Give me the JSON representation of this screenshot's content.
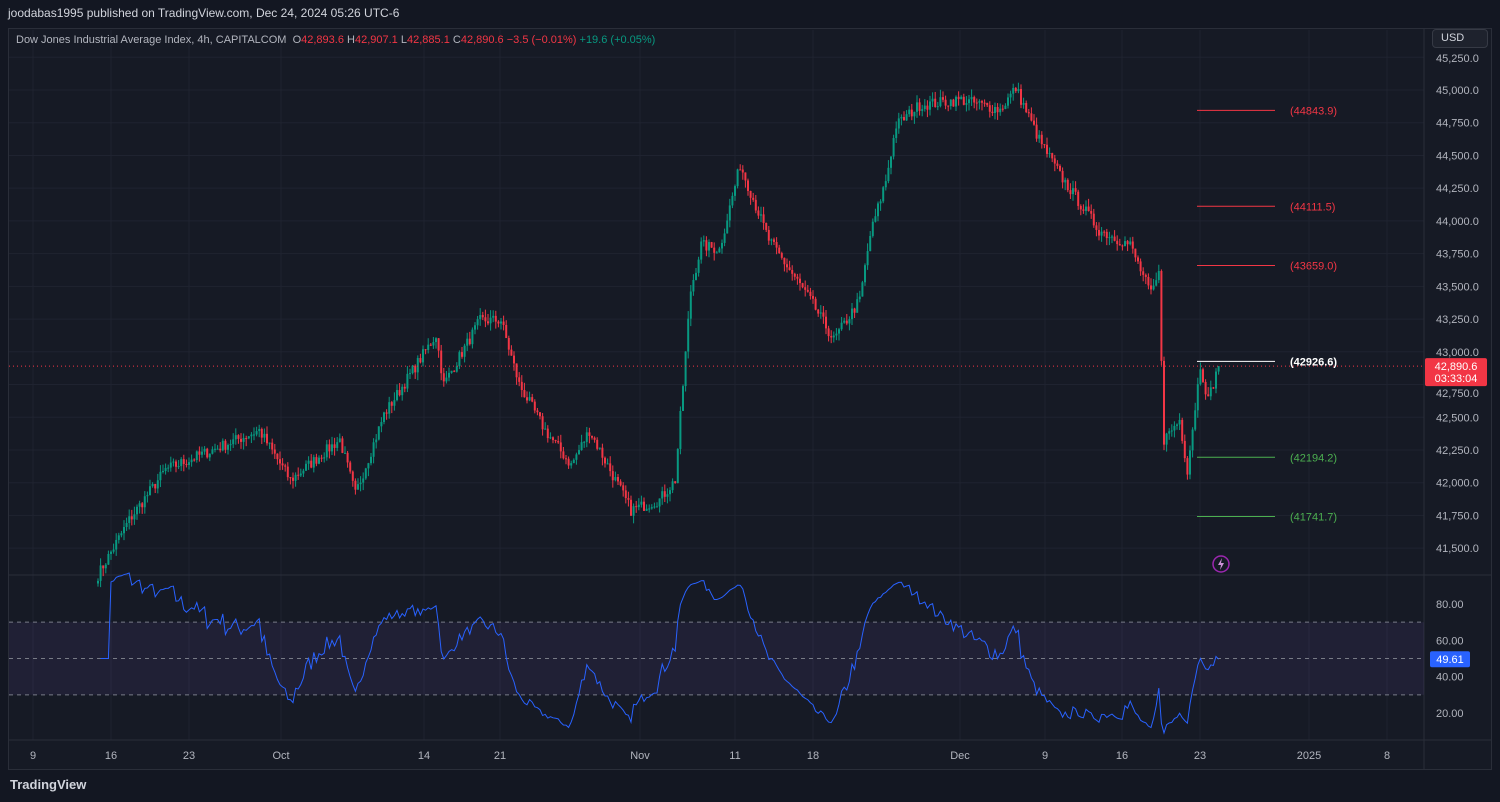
{
  "header": {
    "published": "joodabas1995 published on TradingView.com, Dec 24, 2024 05:26 UTC-6"
  },
  "legend": {
    "symbol": "Dow Jones Industrial Average Index, 4h, CAPITALCOM",
    "o_label": "O",
    "o": "42,893.6",
    "h_label": "H",
    "h": "42,907.1",
    "l_label": "L",
    "l": "42,885.1",
    "c_label": "C",
    "c": "42,890.6",
    "change": "−3.5 (−0.01%)",
    "extra": "+19.6 (+0.05%)"
  },
  "currency": "USD",
  "brand": "TradingView",
  "chart_data": {
    "type": "candlestick",
    "timeframe": "4h",
    "price_ticks": [
      45250,
      45000,
      44750,
      44500,
      44250,
      44000,
      43750,
      43500,
      43250,
      43000,
      42750,
      42500,
      42250,
      42000,
      41750,
      41500
    ],
    "price_tick_labels": [
      "45,250.0",
      "45,000.0",
      "44,750.0",
      "44,500.0",
      "44,250.0",
      "44,000.0",
      "43,750.0",
      "43,500.0",
      "43,250.0",
      "43,000.0",
      "42,750.0",
      "42,500.0",
      "42,250.0",
      "42,000.0",
      "41,750.0",
      "41,500.0"
    ],
    "time_labels": [
      "9",
      "16",
      "23",
      "Oct",
      "14",
      "21",
      "Nov",
      "11",
      "18",
      "Dec",
      "9",
      "16",
      "23",
      "2025",
      "8"
    ],
    "close_path": [
      [
        0,
        41295
      ],
      [
        12,
        41715
      ],
      [
        26,
        42100
      ],
      [
        62,
        42400
      ],
      [
        74,
        42020
      ],
      [
        93,
        42330
      ],
      [
        99,
        41910
      ],
      [
        110,
        42520
      ],
      [
        120,
        42825
      ],
      [
        130,
        43130
      ],
      [
        133,
        42750
      ],
      [
        147,
        43240
      ],
      [
        155,
        43240
      ],
      [
        162,
        42750
      ],
      [
        172,
        42400
      ],
      [
        182,
        42135
      ],
      [
        189,
        42400
      ],
      [
        205,
        41790
      ],
      [
        216,
        41870
      ],
      [
        222,
        42020
      ],
      [
        228,
        43470
      ],
      [
        232,
        43815
      ],
      [
        239,
        43780
      ],
      [
        247,
        44430
      ],
      [
        258,
        43855
      ],
      [
        274,
        43395
      ],
      [
        283,
        43090
      ],
      [
        293,
        43395
      ],
      [
        297,
        43890
      ],
      [
        303,
        44310
      ],
      [
        307,
        44730
      ],
      [
        316,
        44885
      ],
      [
        332,
        44925
      ],
      [
        347,
        44850
      ],
      [
        353,
        45015
      ],
      [
        362,
        44620
      ],
      [
        370,
        44350
      ],
      [
        385,
        43930
      ],
      [
        397,
        43815
      ],
      [
        405,
        43435
      ],
      [
        408,
        43590
      ],
      [
        410,
        42330
      ],
      [
        416,
        42480
      ],
      [
        419,
        42100
      ],
      [
        424,
        42900
      ],
      [
        427,
        42630
      ],
      [
        431,
        42890
      ]
    ],
    "last_price": "42,890.6",
    "countdown": "03:33:04",
    "levels": [
      {
        "value": "(44843.9)",
        "price": 44843.9,
        "color": "#f23645"
      },
      {
        "value": "(44111.5)",
        "price": 44111.5,
        "color": "#f23645"
      },
      {
        "value": "(43659.0)",
        "price": 43659.0,
        "color": "#f23645"
      },
      {
        "value": "(42926.6)",
        "price": 42926.6,
        "color": "#ffffff"
      },
      {
        "value": "(42194.2)",
        "price": 42194.2,
        "color": "#4caf50"
      },
      {
        "value": "(41741.7)",
        "price": 41741.7,
        "color": "#4caf50"
      }
    ],
    "rsi": {
      "value": "49.61",
      "ticks": [
        "80.00",
        "60.00",
        "40.00",
        "20.00"
      ],
      "upper": 70,
      "middle": 50,
      "lower": 30
    },
    "colors": {
      "up": "#089981",
      "down": "#f23645",
      "rsi": "#2962ff"
    }
  }
}
